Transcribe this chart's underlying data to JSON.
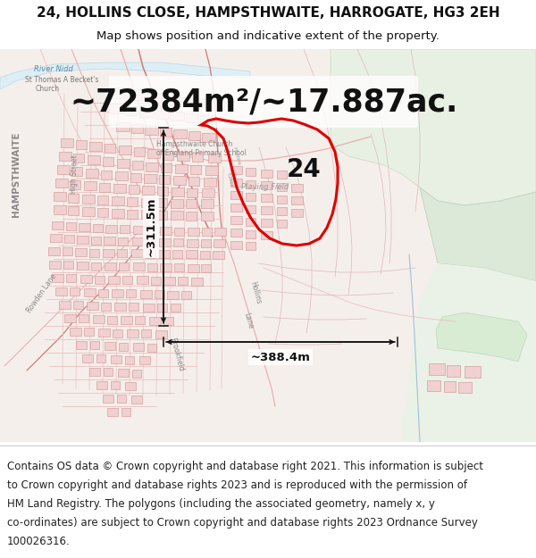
{
  "title_line1": "24, HOLLINS CLOSE, HAMPSTHWAITE, HARROGATE, HG3 2EH",
  "title_line2": "Map shows position and indicative extent of the property.",
  "area_text": "~72384m²/~17.887ac.",
  "label_number": "24",
  "dim_vertical": "~311.5m",
  "dim_horizontal": "~388.4m",
  "footer_lines": [
    "Contains OS data © Crown copyright and database right 2021. This information is subject",
    "to Crown copyright and database rights 2023 and is reproduced with the permission of",
    "HM Land Registry. The polygons (including the associated geometry, namely x, y",
    "co-ordinates) are subject to Crown copyright and database rights 2023 Ordnance Survey",
    "100026316."
  ],
  "red_color": "#dd0000",
  "title_fontsize": 11,
  "subtitle_fontsize": 9.5,
  "area_fontsize": 25,
  "label_fontsize": 20,
  "dim_fontsize": 9.5,
  "footer_fontsize": 8.5,
  "map_bg": "#f5efeb",
  "green1_color": "#ddeedd",
  "green2_color": "#ccdccc",
  "river_color": "#ddeef5",
  "road_pink": "#e8a8a8",
  "road_dark": "#d07878",
  "building_fill": "#f0d0d0",
  "building_edge": "#d09090"
}
